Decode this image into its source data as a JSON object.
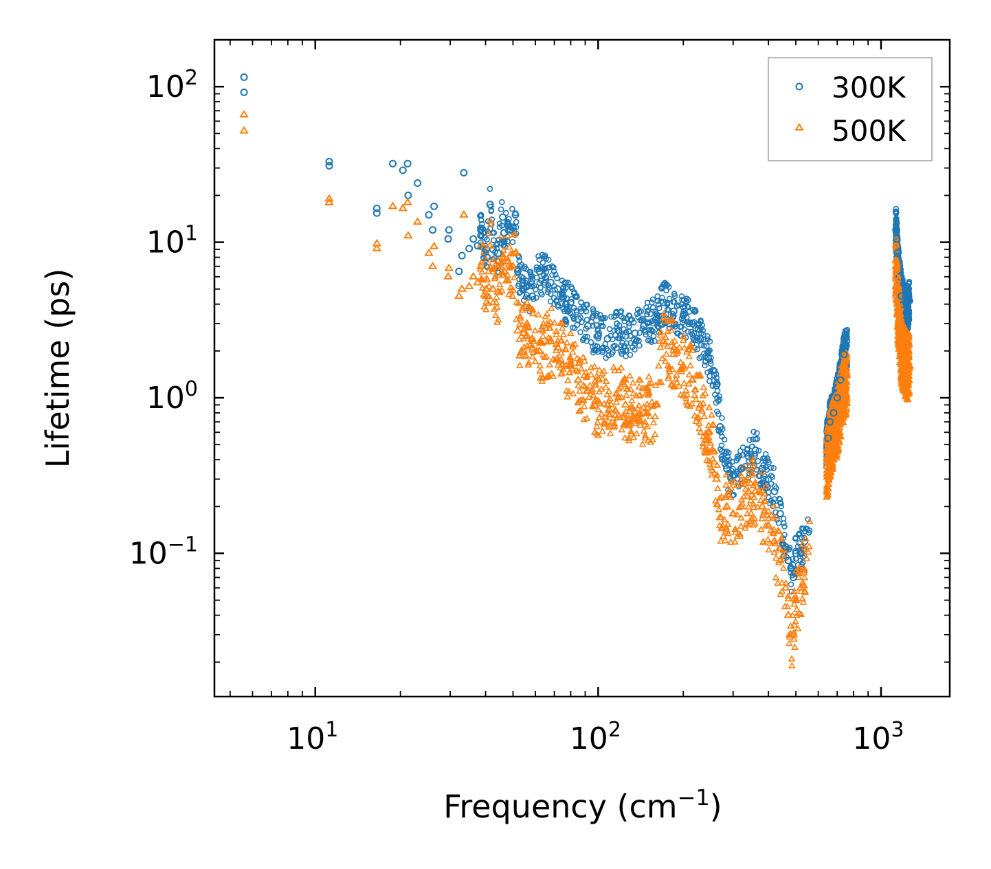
{
  "chart_data": {
    "type": "scatter",
    "title": "",
    "xlabel": "Frequency (cm",
    "xlabel_sup": "−1",
    "xlabel_end": ")",
    "ylabel": "Lifetime (ps)",
    "xscale": "log",
    "yscale": "log",
    "xlim": [
      4.4,
      1750
    ],
    "ylim": [
      0.012,
      200
    ],
    "x_ticks": [
      {
        "value": 10,
        "base": "10",
        "exp": "1"
      },
      {
        "value": 100,
        "base": "10",
        "exp": "2"
      },
      {
        "value": 1000,
        "base": "10",
        "exp": "3"
      }
    ],
    "y_ticks": [
      {
        "value": 0.1,
        "base": "10",
        "exp": "−1"
      },
      {
        "value": 1,
        "base": "10",
        "exp": "0"
      },
      {
        "value": 10,
        "base": "10",
        "exp": "1"
      },
      {
        "value": 100,
        "base": "10",
        "exp": "2"
      }
    ],
    "legend": {
      "placement": "top-right"
    },
    "series": [
      {
        "name": "300K",
        "color": "#1f77b4",
        "marker": "circle",
        "x": [
          5.6,
          5.6,
          11.2,
          11.2,
          16.5,
          16.5,
          18.8,
          20.4,
          21.2,
          21.3,
          23.0,
          25.2,
          26.0,
          26.3,
          29.5,
          29.7,
          32.2,
          33.0,
          33.5,
          35.0,
          36.2,
          37.5,
          38.5,
          40.2,
          40.5,
          41.5,
          42.5,
          44.3,
          46.0,
          46.5,
          48.0,
          49.0,
          50.0,
          51.0,
          52.0,
          54.5,
          56.0,
          58.5,
          62.0,
          68.0,
          72.0,
          77.0,
          80.0,
          85.0,
          92.0,
          100.0,
          108.0,
          118.0,
          125.0,
          135.0,
          145.0,
          160.0,
          170.0,
          185.0,
          200.0,
          215.0,
          230.0,
          245.0,
          255.0,
          262.0,
          270.0,
          285.0,
          300.0,
          320.0,
          340.0,
          360.0,
          380.0,
          400.0,
          420.0,
          440.0,
          460.0,
          470.0,
          480.0,
          490.0,
          500.0,
          520.0,
          650.0,
          660.0,
          680.0,
          700.0,
          720.0,
          740.0,
          1130.0,
          1135.0,
          1145.0,
          1160.0,
          1180.0,
          1200.0,
          1230.0,
          1260.0
        ],
        "y": [
          115,
          92,
          33,
          31,
          16.5,
          15.4,
          32,
          29,
          32,
          20,
          24,
          15,
          12,
          17,
          10.5,
          12,
          6.5,
          8.2,
          28,
          9.1,
          10.5,
          9.5,
          12,
          9,
          8,
          17.5,
          9,
          8.5,
          14.5,
          11.5,
          13,
          12,
          12.5,
          15,
          6.5,
          5,
          5.2,
          4.5,
          6.5,
          5.5,
          5,
          4,
          4.1,
          3.2,
          2.9,
          2.5,
          2.4,
          2.7,
          2.5,
          2.6,
          2.9,
          3.2,
          4.1,
          3.6,
          3.4,
          3.0,
          2.4,
          1.8,
          1.5,
          1.2,
          0.65,
          0.35,
          0.32,
          0.35,
          0.42,
          0.46,
          0.35,
          0.3,
          0.25,
          0.18,
          0.11,
          0.09,
          0.08,
          0.07,
          0.1,
          0.1,
          0.55,
          0.7,
          0.8,
          1.0,
          1.3,
          1.9,
          12,
          10.5,
          8.5,
          6,
          4.5,
          4,
          3.5,
          4.2
        ]
      },
      {
        "name": "500K",
        "color": "#ff7f0e",
        "marker": "triangle",
        "x": [
          5.6,
          5.6,
          11.2,
          11.2,
          16.5,
          16.5,
          18.8,
          20.4,
          21.2,
          21.3,
          23.0,
          25.2,
          26.0,
          26.3,
          29.5,
          29.7,
          32.2,
          33.0,
          33.5,
          35.0,
          36.2,
          37.5,
          38.5,
          40.2,
          40.5,
          41.5,
          42.5,
          44.3,
          46.0,
          46.5,
          48.0,
          49.0,
          50.0,
          51.0,
          52.0,
          54.5,
          56.0,
          58.5,
          62.0,
          68.0,
          72.0,
          77.0,
          80.0,
          85.0,
          92.0,
          100.0,
          108.0,
          118.0,
          125.0,
          135.0,
          145.0,
          160.0,
          170.0,
          185.0,
          200.0,
          215.0,
          230.0,
          245.0,
          255.0,
          262.0,
          270.0,
          285.0,
          300.0,
          320.0,
          340.0,
          360.0,
          380.0,
          400.0,
          420.0,
          440.0,
          460.0,
          470.0,
          480.0,
          490.0,
          500.0,
          520.0,
          650.0,
          660.0,
          680.0,
          700.0,
          720.0,
          740.0,
          1130.0,
          1135.0,
          1145.0,
          1160.0,
          1180.0,
          1200.0,
          1230.0,
          1260.0
        ],
        "y": [
          66,
          52,
          19,
          18,
          9.8,
          9.1,
          17,
          16.5,
          18,
          11,
          13.5,
          8.5,
          7,
          9.4,
          6.0,
          6.8,
          4.5,
          5.0,
          15,
          5.2,
          6.0,
          5.5,
          7.0,
          5.0,
          4.5,
          9.5,
          5.0,
          4.8,
          8.0,
          6.5,
          7.5,
          7.0,
          7.0,
          8.5,
          2.7,
          2.6,
          2.5,
          2.4,
          2.0,
          2.3,
          2.1,
          1.6,
          1.6,
          1.3,
          1.1,
          0.95,
          0.9,
          1.0,
          0.9,
          0.8,
          0.8,
          0.9,
          2.3,
          1.9,
          1.6,
          1.3,
          0.9,
          0.6,
          0.45,
          0.3,
          0.17,
          0.2,
          0.18,
          0.2,
          0.25,
          0.25,
          0.2,
          0.15,
          0.12,
          0.09,
          0.06,
          0.04,
          0.03,
          0.03,
          0.05,
          0.06,
          0.4,
          0.5,
          0.6,
          0.7,
          0.9,
          1.2,
          7,
          6,
          4,
          3,
          2,
          1.8,
          1.6,
          1.6
        ]
      }
    ]
  }
}
